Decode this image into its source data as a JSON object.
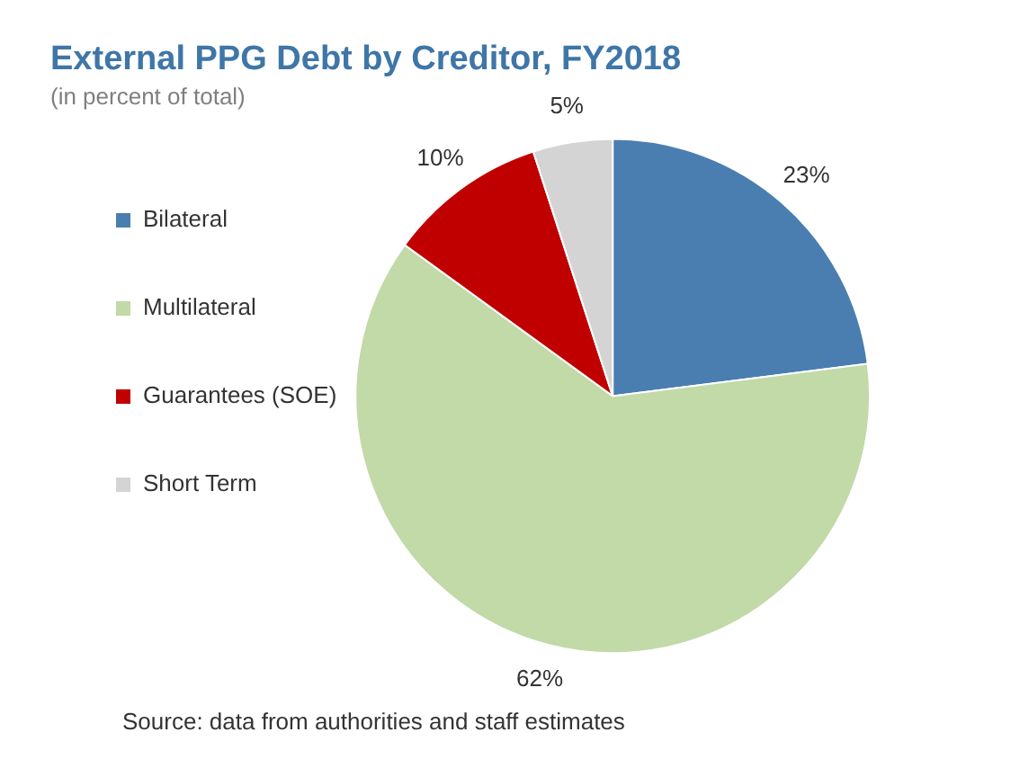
{
  "chart_data": {
    "type": "pie",
    "title": "External PPG Debt by Creditor, FY2018",
    "subtitle": "(in percent of total)",
    "categories": [
      "Bilateral",
      "Multilateral",
      "Guarantees (SOE)",
      "Short Term"
    ],
    "values": [
      23,
      62,
      10,
      5
    ],
    "colors": [
      "#4a7eb0",
      "#c2d9a8",
      "#c00000",
      "#d4d4d4"
    ],
    "value_labels": [
      "23%",
      "62%",
      "10%",
      "5%"
    ],
    "legend": "left",
    "annotations": [
      "Source: data from authorities and staff estimates"
    ]
  }
}
